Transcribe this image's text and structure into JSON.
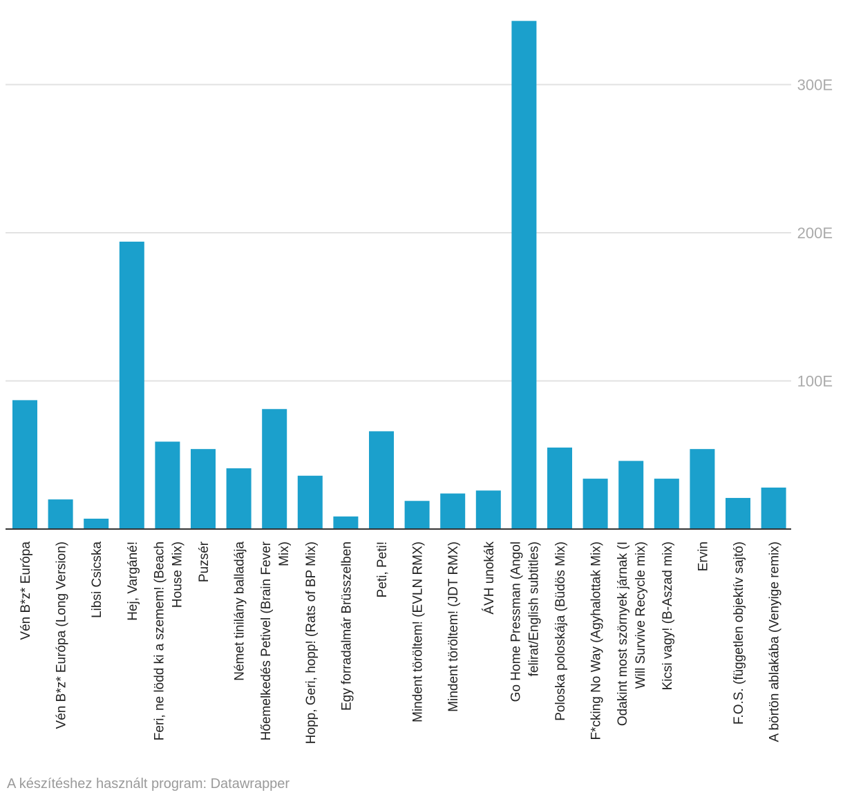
{
  "colors": {
    "bar": "#1ba0cc",
    "grid": "#e2e2e2",
    "axis": "#333333",
    "tick_text": "#aaaaaa",
    "label_text": "#222222",
    "footer_text": "#9a9a9a"
  },
  "chart_data": {
    "type": "bar",
    "title": "",
    "xlabel": "",
    "ylabel": "",
    "ylim": [
      0,
      345000
    ],
    "grid": true,
    "y_axis_position": "right",
    "y_ticks": [
      100000,
      200000,
      300000
    ],
    "y_tick_labels": [
      "100E",
      "200E",
      "300E"
    ],
    "categories": [
      [
        "Vén B*z* Európa"
      ],
      [
        "Vén B*z* Európa (Long Version)"
      ],
      [
        "Libsi Csicska"
      ],
      [
        "Hej, Vargáné!"
      ],
      [
        "Feri, ne lödd ki a szemem! (Beach",
        "House Mix)"
      ],
      [
        "Puzsér"
      ],
      [
        "Német tinilány balladája"
      ],
      [
        "Hőemelkedés Petivel (Brain Fever",
        "Mix)"
      ],
      [
        "Hopp, Geri, hopp! (Rats of BP Mix)"
      ],
      [
        "Egy forradalmár Brüsszelben"
      ],
      [
        "Peti, Peti!"
      ],
      [
        "Mindent töröltem! (EVLN RMX)"
      ],
      [
        "Mindent töröltem! (JDT RMX)"
      ],
      [
        "ÁVH unokák"
      ],
      [
        "Go Home Pressman (Angol",
        "felirat/English subtitles)"
      ],
      [
        "Poloska poloskája (Büdös Mix)"
      ],
      [
        "F*cking No Way (Agyhalottak Mix)"
      ],
      [
        "Odakint most szörnyek járnak (I",
        "Will Survive Recycle mix)"
      ],
      [
        "Kicsi vagy! (B-Aszad mix)"
      ],
      [
        "Ervin"
      ],
      [
        "F.O.S. (független objektív sajtó)"
      ],
      [
        "A börtön ablakába (Venyige remix)"
      ]
    ],
    "values": [
      87000,
      20000,
      7000,
      194000,
      59000,
      54000,
      41000,
      81000,
      36000,
      8500,
      66000,
      19000,
      24000,
      26000,
      343000,
      55000,
      34000,
      46000,
      34000,
      54000,
      21000,
      28000
    ]
  },
  "footer": {
    "credit": "A készítéshez használt program: Datawrapper"
  }
}
